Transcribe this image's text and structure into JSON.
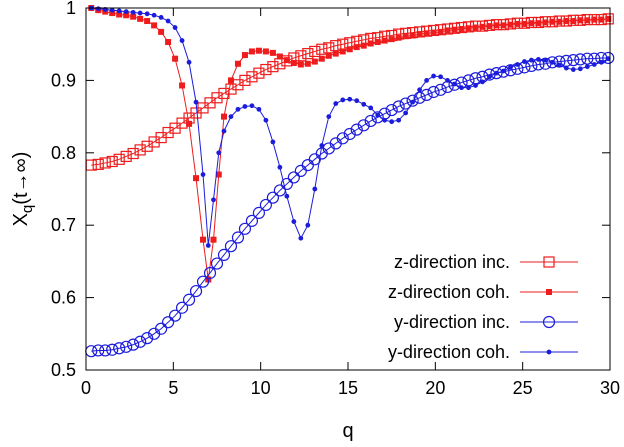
{
  "chart_data": {
    "type": "line",
    "xlabel": "q",
    "ylabel_main": "X",
    "ylabel_sub": "q",
    "ylabel_paren": "(t→∞)",
    "xlim": [
      0,
      30
    ],
    "ylim": [
      0.5,
      1.0
    ],
    "xticks": [
      0,
      5,
      10,
      15,
      20,
      25,
      30
    ],
    "yticks": [
      0.5,
      0.6,
      0.7,
      0.8,
      0.9,
      1.0
    ],
    "ytick_labels": [
      "0.5",
      "0.6",
      "0.7",
      "0.8",
      "0.9",
      "1"
    ],
    "grid": false,
    "legend_position": "bottom-right",
    "series": [
      {
        "name": "z-direction inc.",
        "color": "#ee1c1c",
        "marker": "open-square",
        "points": [
          [
            0.3,
            0.783
          ],
          [
            0.7,
            0.784
          ],
          [
            1.1,
            0.786
          ],
          [
            1.5,
            0.788
          ],
          [
            1.9,
            0.791
          ],
          [
            2.3,
            0.795
          ],
          [
            2.7,
            0.799
          ],
          [
            3.1,
            0.804
          ],
          [
            3.5,
            0.809
          ],
          [
            3.9,
            0.815
          ],
          [
            4.3,
            0.821
          ],
          [
            4.7,
            0.828
          ],
          [
            5.1,
            0.834
          ],
          [
            5.5,
            0.841
          ],
          [
            5.9,
            0.848
          ],
          [
            6.3,
            0.855
          ],
          [
            6.7,
            0.862
          ],
          [
            7.1,
            0.869
          ],
          [
            7.5,
            0.876
          ],
          [
            7.9,
            0.882
          ],
          [
            8.3,
            0.888
          ],
          [
            8.7,
            0.894
          ],
          [
            9.1,
            0.9
          ],
          [
            9.5,
            0.905
          ],
          [
            9.9,
            0.91
          ],
          [
            10.3,
            0.915
          ],
          [
            10.7,
            0.919
          ],
          [
            11.1,
            0.923
          ],
          [
            11.5,
            0.927
          ],
          [
            11.9,
            0.931
          ],
          [
            12.3,
            0.934
          ],
          [
            12.7,
            0.937
          ],
          [
            13.1,
            0.94
          ],
          [
            13.5,
            0.943
          ],
          [
            13.9,
            0.945
          ],
          [
            14.3,
            0.948
          ],
          [
            14.7,
            0.95
          ],
          [
            15.1,
            0.952
          ],
          [
            15.5,
            0.954
          ],
          [
            15.9,
            0.956
          ],
          [
            16.3,
            0.958
          ],
          [
            16.7,
            0.959
          ],
          [
            17.1,
            0.961
          ],
          [
            17.5,
            0.962
          ],
          [
            17.9,
            0.964
          ],
          [
            18.3,
            0.965
          ],
          [
            18.7,
            0.966
          ],
          [
            19.1,
            0.967
          ],
          [
            19.5,
            0.968
          ],
          [
            19.9,
            0.969
          ],
          [
            20.3,
            0.97
          ],
          [
            20.7,
            0.971
          ],
          [
            21.1,
            0.972
          ],
          [
            21.5,
            0.973
          ],
          [
            21.9,
            0.974
          ],
          [
            22.3,
            0.975
          ],
          [
            22.7,
            0.975
          ],
          [
            23.1,
            0.976
          ],
          [
            23.5,
            0.977
          ],
          [
            23.9,
            0.977
          ],
          [
            24.3,
            0.978
          ],
          [
            24.7,
            0.979
          ],
          [
            25.1,
            0.979
          ],
          [
            25.5,
            0.98
          ],
          [
            25.9,
            0.98
          ],
          [
            26.3,
            0.981
          ],
          [
            26.7,
            0.981
          ],
          [
            27.1,
            0.982
          ],
          [
            27.5,
            0.982
          ],
          [
            27.9,
            0.983
          ],
          [
            28.3,
            0.983
          ],
          [
            28.7,
            0.984
          ],
          [
            29.1,
            0.984
          ],
          [
            29.5,
            0.984
          ],
          [
            29.9,
            0.985
          ]
        ]
      },
      {
        "name": "z-direction coh.",
        "color": "#ee1c1c",
        "marker": "filled-square",
        "points": [
          [
            0.3,
            1.0
          ],
          [
            0.7,
            0.997
          ],
          [
            1.1,
            0.995
          ],
          [
            1.5,
            0.993
          ],
          [
            1.9,
            0.991
          ],
          [
            2.3,
            0.99
          ],
          [
            2.7,
            0.988
          ],
          [
            3.1,
            0.985
          ],
          [
            3.5,
            0.982
          ],
          [
            3.9,
            0.976
          ],
          [
            4.3,
            0.967
          ],
          [
            4.7,
            0.953
          ],
          [
            5.1,
            0.93
          ],
          [
            5.5,
            0.893
          ],
          [
            5.9,
            0.84
          ],
          [
            6.3,
            0.765
          ],
          [
            6.7,
            0.68
          ],
          [
            7.0,
            0.625
          ],
          [
            7.3,
            0.68
          ],
          [
            7.6,
            0.77
          ],
          [
            7.9,
            0.85
          ],
          [
            8.3,
            0.9
          ],
          [
            8.7,
            0.923
          ],
          [
            9.1,
            0.935
          ],
          [
            9.5,
            0.94
          ],
          [
            9.9,
            0.941
          ],
          [
            10.3,
            0.94
          ],
          [
            10.7,
            0.938
          ],
          [
            11.1,
            0.933
          ],
          [
            11.5,
            0.928
          ],
          [
            11.9,
            0.924
          ],
          [
            12.3,
            0.922
          ],
          [
            12.7,
            0.923
          ],
          [
            13.1,
            0.926
          ],
          [
            13.5,
            0.93
          ],
          [
            13.9,
            0.934
          ],
          [
            14.3,
            0.937
          ],
          [
            14.7,
            0.94
          ],
          [
            15.1,
            0.943
          ],
          [
            15.5,
            0.946
          ],
          [
            15.9,
            0.948
          ],
          [
            16.3,
            0.951
          ],
          [
            16.7,
            0.953
          ],
          [
            17.1,
            0.955
          ],
          [
            17.5,
            0.957
          ],
          [
            17.9,
            0.959
          ],
          [
            18.3,
            0.961
          ],
          [
            18.7,
            0.962
          ],
          [
            19.1,
            0.964
          ],
          [
            19.5,
            0.965
          ],
          [
            19.9,
            0.966
          ],
          [
            20.3,
            0.967
          ],
          [
            20.7,
            0.969
          ],
          [
            21.1,
            0.97
          ],
          [
            21.5,
            0.971
          ],
          [
            21.9,
            0.972
          ],
          [
            22.3,
            0.973
          ],
          [
            22.7,
            0.974
          ],
          [
            23.1,
            0.975
          ],
          [
            23.5,
            0.976
          ],
          [
            23.9,
            0.976
          ],
          [
            24.3,
            0.977
          ],
          [
            24.7,
            0.978
          ],
          [
            25.1,
            0.978
          ],
          [
            25.5,
            0.979
          ],
          [
            25.9,
            0.979
          ],
          [
            26.3,
            0.98
          ],
          [
            26.7,
            0.981
          ],
          [
            27.1,
            0.981
          ],
          [
            27.5,
            0.982
          ],
          [
            27.9,
            0.982
          ],
          [
            28.3,
            0.983
          ],
          [
            28.7,
            0.983
          ],
          [
            29.1,
            0.984
          ],
          [
            29.5,
            0.984
          ],
          [
            29.9,
            0.985
          ]
        ]
      },
      {
        "name": "y-direction inc.",
        "color": "#1c1cdc",
        "marker": "open-circle",
        "points": [
          [
            0.3,
            0.526
          ],
          [
            0.7,
            0.527
          ],
          [
            1.1,
            0.527
          ],
          [
            1.5,
            0.528
          ],
          [
            1.9,
            0.53
          ],
          [
            2.3,
            0.532
          ],
          [
            2.7,
            0.535
          ],
          [
            3.1,
            0.539
          ],
          [
            3.5,
            0.544
          ],
          [
            3.9,
            0.55
          ],
          [
            4.3,
            0.557
          ],
          [
            4.7,
            0.566
          ],
          [
            5.1,
            0.575
          ],
          [
            5.5,
            0.586
          ],
          [
            5.9,
            0.597
          ],
          [
            6.3,
            0.609
          ],
          [
            6.7,
            0.622
          ],
          [
            7.1,
            0.634
          ],
          [
            7.5,
            0.647
          ],
          [
            7.9,
            0.659
          ],
          [
            8.3,
            0.671
          ],
          [
            8.7,
            0.683
          ],
          [
            9.1,
            0.695
          ],
          [
            9.5,
            0.706
          ],
          [
            9.9,
            0.717
          ],
          [
            10.3,
            0.728
          ],
          [
            10.7,
            0.738
          ],
          [
            11.1,
            0.748
          ],
          [
            11.5,
            0.757
          ],
          [
            11.9,
            0.766
          ],
          [
            12.3,
            0.775
          ],
          [
            12.7,
            0.783
          ],
          [
            13.1,
            0.791
          ],
          [
            13.5,
            0.799
          ],
          [
            13.9,
            0.806
          ],
          [
            14.3,
            0.813
          ],
          [
            14.7,
            0.82
          ],
          [
            15.1,
            0.826
          ],
          [
            15.5,
            0.832
          ],
          [
            15.9,
            0.838
          ],
          [
            16.3,
            0.844
          ],
          [
            16.7,
            0.849
          ],
          [
            17.1,
            0.854
          ],
          [
            17.5,
            0.859
          ],
          [
            17.9,
            0.864
          ],
          [
            18.3,
            0.868
          ],
          [
            18.7,
            0.872
          ],
          [
            19.1,
            0.876
          ],
          [
            19.5,
            0.88
          ],
          [
            19.9,
            0.884
          ],
          [
            20.3,
            0.887
          ],
          [
            20.7,
            0.891
          ],
          [
            21.1,
            0.894
          ],
          [
            21.5,
            0.897
          ],
          [
            21.9,
            0.9
          ],
          [
            22.3,
            0.903
          ],
          [
            22.7,
            0.905
          ],
          [
            23.1,
            0.908
          ],
          [
            23.5,
            0.91
          ],
          [
            23.9,
            0.912
          ],
          [
            24.3,
            0.914
          ],
          [
            24.7,
            0.916
          ],
          [
            25.1,
            0.918
          ],
          [
            25.5,
            0.92
          ],
          [
            25.9,
            0.922
          ],
          [
            26.3,
            0.923
          ],
          [
            26.7,
            0.925
          ],
          [
            27.1,
            0.926
          ],
          [
            27.5,
            0.927
          ],
          [
            27.9,
            0.928
          ],
          [
            28.3,
            0.929
          ],
          [
            28.7,
            0.93
          ],
          [
            29.1,
            0.93
          ],
          [
            29.5,
            0.931
          ],
          [
            29.9,
            0.931
          ]
        ]
      },
      {
        "name": "y-direction coh.",
        "color": "#1c1cdc",
        "marker": "filled-dot",
        "points": [
          [
            0.3,
            1.0
          ],
          [
            0.7,
            0.999
          ],
          [
            1.1,
            0.998
          ],
          [
            1.5,
            0.997
          ],
          [
            1.9,
            0.996
          ],
          [
            2.3,
            0.995
          ],
          [
            2.7,
            0.994
          ],
          [
            3.1,
            0.993
          ],
          [
            3.5,
            0.992
          ],
          [
            3.9,
            0.99
          ],
          [
            4.3,
            0.987
          ],
          [
            4.7,
            0.982
          ],
          [
            5.1,
            0.973
          ],
          [
            5.5,
            0.955
          ],
          [
            5.9,
            0.925
          ],
          [
            6.3,
            0.87
          ],
          [
            6.7,
            0.77
          ],
          [
            7.0,
            0.672
          ],
          [
            7.3,
            0.735
          ],
          [
            7.6,
            0.8
          ],
          [
            7.9,
            0.83
          ],
          [
            8.3,
            0.85
          ],
          [
            8.7,
            0.86
          ],
          [
            9.1,
            0.864
          ],
          [
            9.5,
            0.865
          ],
          [
            9.9,
            0.86
          ],
          [
            10.3,
            0.845
          ],
          [
            10.7,
            0.815
          ],
          [
            11.1,
            0.78
          ],
          [
            11.5,
            0.74
          ],
          [
            11.9,
            0.705
          ],
          [
            12.3,
            0.682
          ],
          [
            12.7,
            0.7
          ],
          [
            13.1,
            0.75
          ],
          [
            13.5,
            0.81
          ],
          [
            13.9,
            0.85
          ],
          [
            14.3,
            0.868
          ],
          [
            14.7,
            0.873
          ],
          [
            15.1,
            0.874
          ],
          [
            15.5,
            0.872
          ],
          [
            15.9,
            0.867
          ],
          [
            16.3,
            0.862
          ],
          [
            16.7,
            0.852
          ],
          [
            17.1,
            0.845
          ],
          [
            17.5,
            0.843
          ],
          [
            17.9,
            0.845
          ],
          [
            18.3,
            0.855
          ],
          [
            18.7,
            0.87
          ],
          [
            19.1,
            0.887
          ],
          [
            19.5,
            0.9
          ],
          [
            19.9,
            0.906
          ],
          [
            20.3,
            0.905
          ],
          [
            20.7,
            0.9
          ],
          [
            21.1,
            0.895
          ],
          [
            21.5,
            0.89
          ],
          [
            21.9,
            0.89
          ],
          [
            22.3,
            0.893
          ],
          [
            22.7,
            0.898
          ],
          [
            23.1,
            0.905
          ],
          [
            23.5,
            0.91
          ],
          [
            23.9,
            0.913
          ],
          [
            24.3,
            0.918
          ],
          [
            24.7,
            0.922
          ],
          [
            25.1,
            0.926
          ],
          [
            25.5,
            0.928
          ],
          [
            25.9,
            0.929
          ],
          [
            26.3,
            0.928
          ],
          [
            26.7,
            0.925
          ],
          [
            27.1,
            0.921
          ],
          [
            27.5,
            0.917
          ],
          [
            27.9,
            0.915
          ],
          [
            28.3,
            0.916
          ],
          [
            28.7,
            0.919
          ],
          [
            29.1,
            0.922
          ],
          [
            29.5,
            0.925
          ],
          [
            29.9,
            0.93
          ]
        ]
      }
    ]
  }
}
